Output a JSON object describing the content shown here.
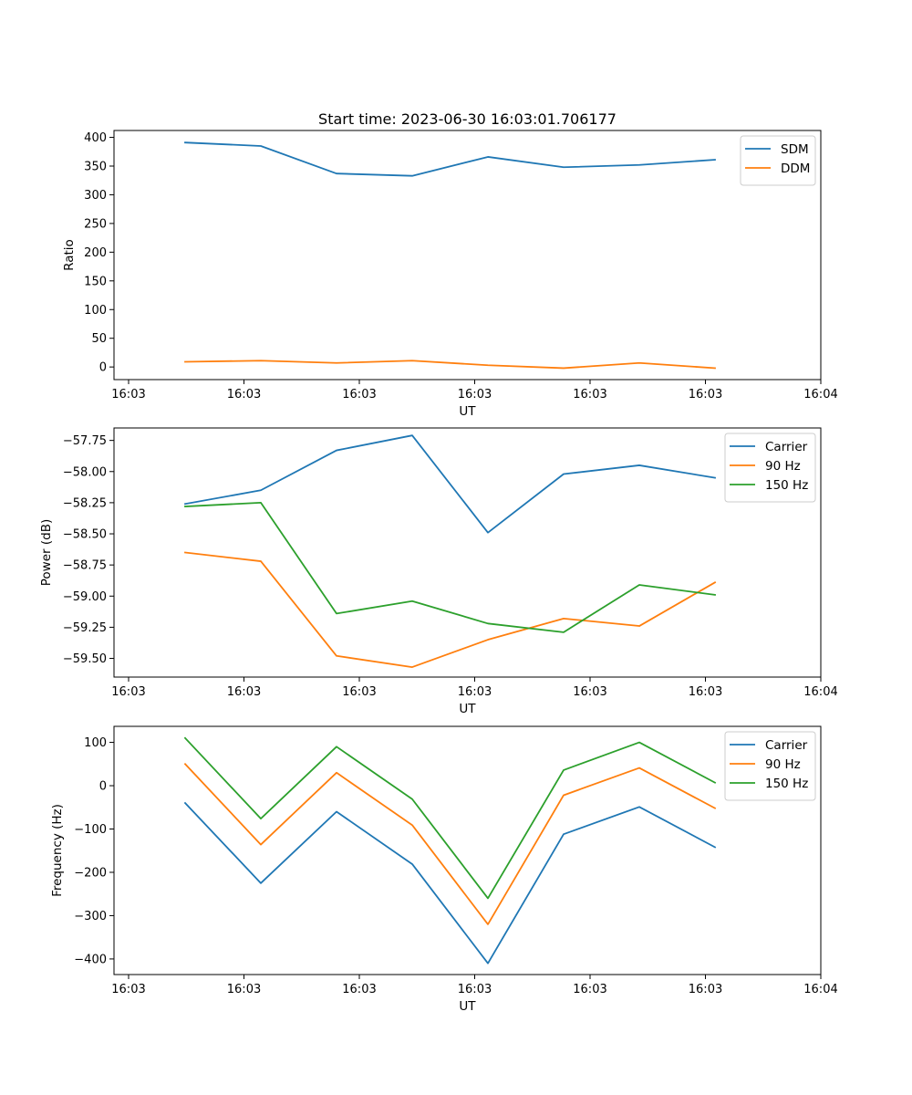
{
  "chart_data": [
    {
      "type": "line",
      "title": "Start time: 2023-06-30 16:03:01.706177",
      "xlabel": "UT",
      "ylabel": "Ratio",
      "x_ticks": [
        "16:03",
        "16:03",
        "16:03",
        "16:03",
        "16:03",
        "16:03",
        "16:04"
      ],
      "x_points": 8,
      "ylim": [
        -22,
        412
      ],
      "y_ticks": [
        0,
        50,
        100,
        150,
        200,
        250,
        300,
        350,
        400
      ],
      "y_tick_labels": [
        "0",
        "50",
        "100",
        "150",
        "200",
        "250",
        "300",
        "350",
        "400"
      ],
      "grid": false,
      "legend": "top-right",
      "series": [
        {
          "name": "SDM",
          "color": "#1f77b4",
          "values": [
            391,
            385,
            337,
            333,
            366,
            348,
            352,
            361
          ]
        },
        {
          "name": "DDM",
          "color": "#ff7f0e",
          "values": [
            9,
            11,
            7,
            11,
            3,
            -2,
            7,
            -2
          ]
        }
      ]
    },
    {
      "type": "line",
      "xlabel": "UT",
      "ylabel": "Power (dB)",
      "x_ticks": [
        "16:03",
        "16:03",
        "16:03",
        "16:03",
        "16:03",
        "16:03",
        "16:04"
      ],
      "x_points": 8,
      "ylim": [
        -59.65,
        -57.65
      ],
      "y_ticks": [
        -59.5,
        -59.25,
        -59.0,
        -58.75,
        -58.5,
        -58.25,
        -58.0,
        -57.75
      ],
      "y_tick_labels": [
        "−59.50",
        "−59.25",
        "−59.00",
        "−58.75",
        "−58.50",
        "−58.25",
        "−58.00",
        "−57.75"
      ],
      "grid": false,
      "legend": "top-right",
      "series": [
        {
          "name": "Carrier",
          "color": "#1f77b4",
          "values": [
            -58.26,
            -58.15,
            -57.83,
            -57.71,
            -58.49,
            -58.02,
            -57.95,
            -58.05
          ]
        },
        {
          "name": "90 Hz",
          "color": "#ff7f0e",
          "values": [
            -58.65,
            -58.72,
            -59.48,
            -59.57,
            -59.35,
            -59.18,
            -59.24,
            -58.89
          ]
        },
        {
          "name": "150 Hz",
          "color": "#2ca02c",
          "values": [
            -58.28,
            -58.25,
            -59.14,
            -59.04,
            -59.22,
            -59.29,
            -58.91,
            -58.99
          ]
        }
      ]
    },
    {
      "type": "line",
      "xlabel": "UT",
      "ylabel": "Frequency (Hz)",
      "x_ticks": [
        "16:03",
        "16:03",
        "16:03",
        "16:03",
        "16:03",
        "16:03",
        "16:04"
      ],
      "x_points": 8,
      "ylim": [
        -436,
        137
      ],
      "y_ticks": [
        -400,
        -300,
        -200,
        -100,
        0,
        100
      ],
      "y_tick_labels": [
        "−400",
        "−300",
        "−200",
        "−100",
        "0",
        "100"
      ],
      "grid": false,
      "legend": "top-right",
      "series": [
        {
          "name": "Carrier",
          "color": "#1f77b4",
          "values": [
            -40,
            -225,
            -60,
            -181,
            -410,
            -112,
            -49,
            -142
          ]
        },
        {
          "name": "90 Hz",
          "color": "#ff7f0e",
          "values": [
            50,
            -136,
            30,
            -91,
            -320,
            -22,
            41,
            -52
          ]
        },
        {
          "name": "150 Hz",
          "color": "#2ca02c",
          "values": [
            110,
            -76,
            90,
            -31,
            -260,
            36,
            100,
            7
          ]
        }
      ]
    }
  ]
}
